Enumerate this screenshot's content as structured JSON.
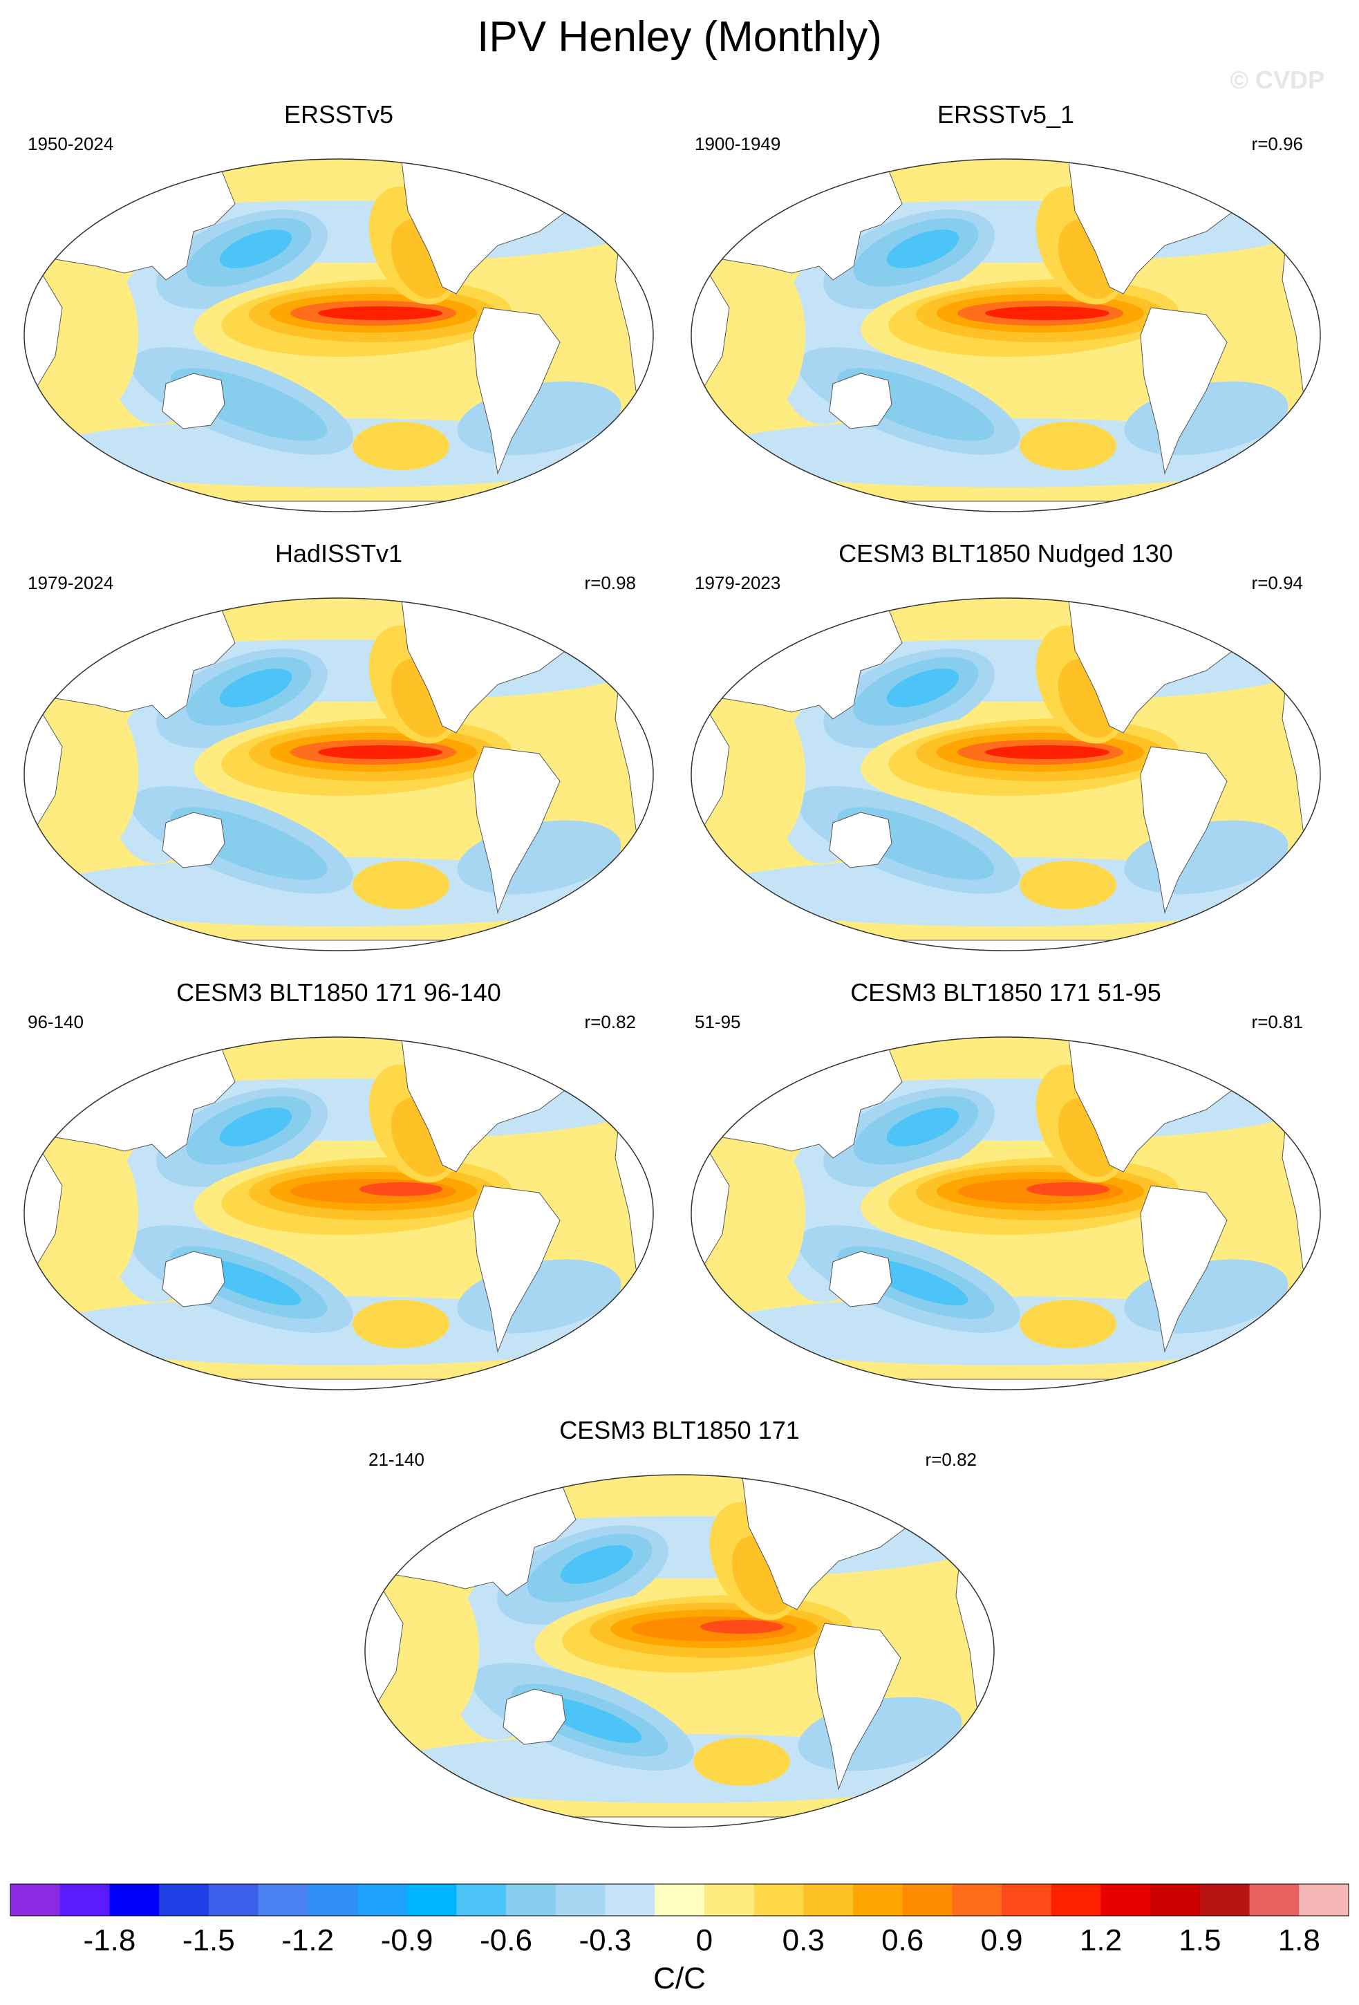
{
  "figure": {
    "title": "IPV Henley (Monthly)",
    "watermark": "© CVDP"
  },
  "panels": [
    {
      "name": "ERSSTv5",
      "period": "1950-2024",
      "r": "",
      "pattern": "obs"
    },
    {
      "name": "ERSSTv5_1",
      "period": "1900-1949",
      "r": "r=0.96",
      "pattern": "obs"
    },
    {
      "name": "HadISSTv1",
      "period": "1979-2024",
      "r": "r=0.98",
      "pattern": "obs"
    },
    {
      "name": "CESM3 BLT1850 Nudged 130",
      "period": "1979-2023",
      "r": "r=0.94",
      "pattern": "obs"
    },
    {
      "name": "CESM3 BLT1850 171 96-140",
      "period": "96-140",
      "r": "r=0.82",
      "pattern": "model"
    },
    {
      "name": "CESM3 BLT1850 171 51-95",
      "period": "51-95",
      "r": "r=0.81",
      "pattern": "model"
    },
    {
      "name": "CESM3 BLT1850 171",
      "period": "21-140",
      "r": "r=0.82",
      "pattern": "model"
    }
  ],
  "colorbar": {
    "colors": [
      "#8a2be2",
      "#5a1cff",
      "#0000ff",
      "#1f3fe6",
      "#3b5fe8",
      "#4a80f0",
      "#2f8ff5",
      "#1ea0ff",
      "#00b4ff",
      "#4cc4f8",
      "#86cdee",
      "#a6d6f2",
      "#c4e3f6",
      "#ffffc2",
      "#ffec80",
      "#ffd84a",
      "#ffc226",
      "#ffa600",
      "#ff8c00",
      "#ff6e1a",
      "#ff4a1a",
      "#ff2000",
      "#e60000",
      "#cc0000",
      "#b81414",
      "#e86060",
      "#f7b6b6"
    ],
    "tick_labels": [
      "-1.8",
      "-1.5",
      "-1.2",
      "-0.9",
      "-0.6",
      "-0.3",
      "0",
      "0.3",
      "0.6",
      "0.9",
      "1.2",
      "1.5",
      "1.8"
    ],
    "units": "C/C"
  }
}
